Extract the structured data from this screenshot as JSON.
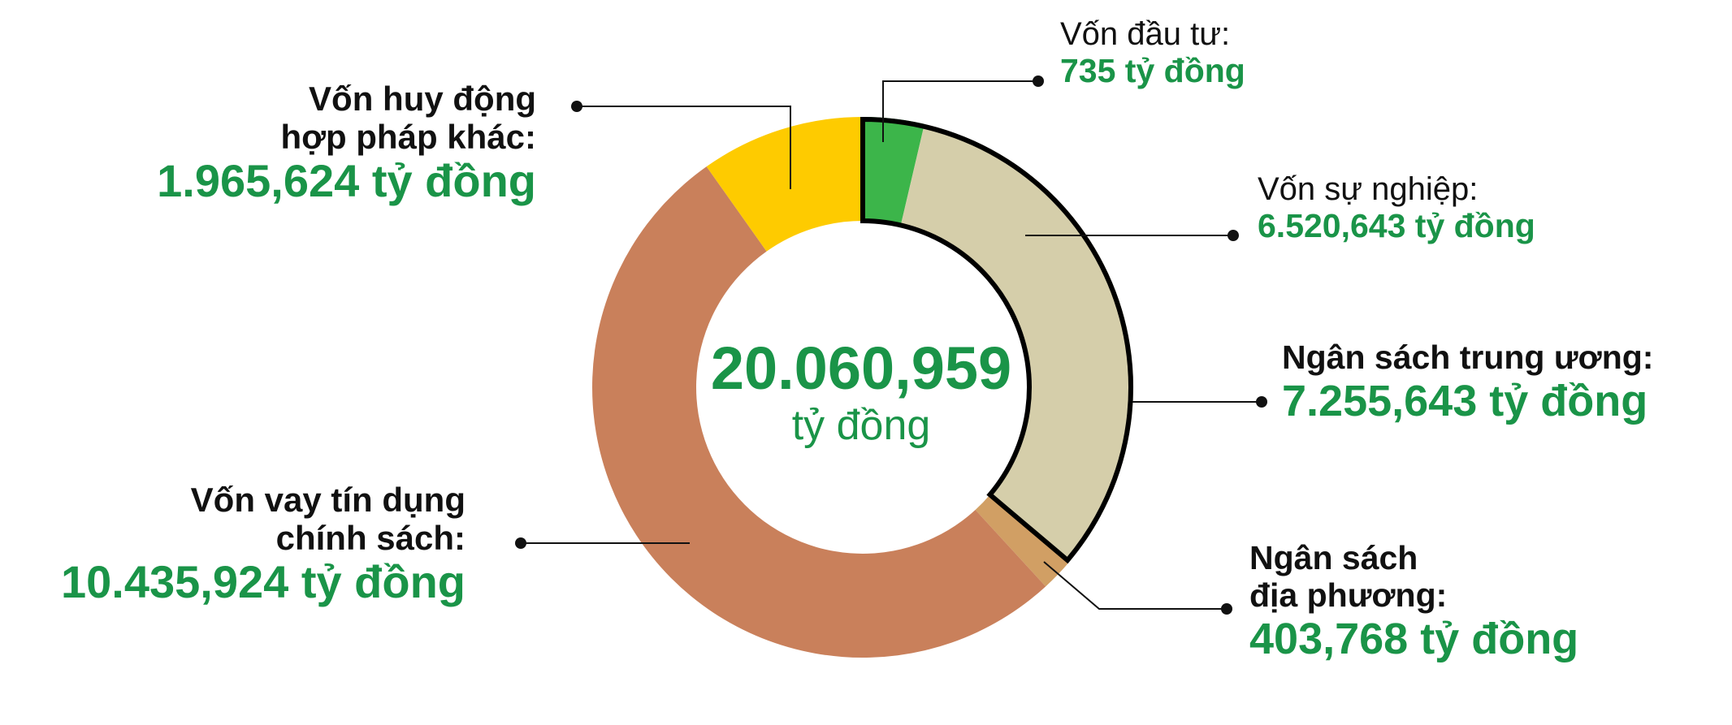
{
  "chart_data": {
    "type": "pie",
    "unit": "tỷ đồng",
    "total": {
      "value": "20.060,959",
      "unit": "tỷ đồng"
    },
    "colors": {
      "von_dau_tu": "#3cb54a",
      "von_su_nghiep": "#d5ceaa",
      "ngan_sach_dia_phuong": "#d19f64",
      "von_vay": "#c9805b",
      "von_huy_dong": "#fecb00",
      "outline": "#000000",
      "label_value": "#1a9448"
    },
    "slices": [
      {
        "name": "von_dau_tu",
        "label": "Vốn đầu tư:",
        "value": 735,
        "value_text": "735 tỷ đồng"
      },
      {
        "name": "von_su_nghiep",
        "label": "Vốn sự nghiệp:",
        "value": 6520.643,
        "value_text": "6.520,643  tỷ đồng"
      },
      {
        "name": "ngan_sach_dia_phuong",
        "label": "Ngân sách địa phương:",
        "value": 403.768,
        "value_text": "403,768 tỷ đồng"
      },
      {
        "name": "von_vay",
        "label": "Vốn vay tín dụng chính sách:",
        "value": 10435.924,
        "value_text": "10.435,924 tỷ đồng"
      },
      {
        "name": "von_huy_dong",
        "label": "Vốn huy động hợp pháp khác:",
        "value": 1965.624,
        "value_text": "1.965,624 tỷ đồng"
      }
    ],
    "group": {
      "label": "Ngân sách trung ương:",
      "value": 7255.643,
      "value_text": "7.255,643 tỷ đồng"
    }
  },
  "labels": {
    "huy_dong": {
      "line1": "Vốn huy động",
      "line2": "hợp pháp khác:"
    },
    "vay": {
      "line1": "Vốn vay tín dụng",
      "line2": "chính sách:"
    },
    "dia_phuong": {
      "line1": "Ngân sách",
      "line2": "địa phương:"
    }
  }
}
